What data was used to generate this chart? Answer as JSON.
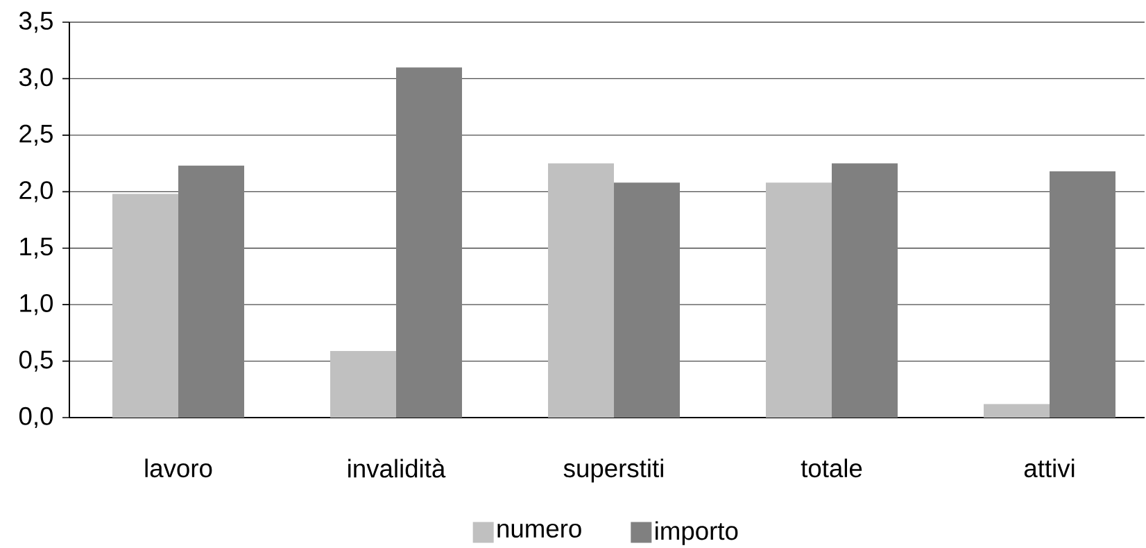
{
  "chart_data": {
    "type": "bar",
    "categories": [
      "lavoro",
      "invalidità",
      "superstiti",
      "totale",
      "attivi"
    ],
    "series": [
      {
        "name": "numero",
        "color": "#c0c0c0",
        "values": [
          1.98,
          0.59,
          2.25,
          2.08,
          0.12
        ]
      },
      {
        "name": "importo",
        "color": "#808080",
        "values": [
          2.23,
          3.1,
          2.08,
          2.25,
          2.18
        ]
      }
    ],
    "ylim": [
      0,
      3.5
    ],
    "yticks": [
      {
        "value": 0,
        "label": "0,0"
      },
      {
        "value": 0.5,
        "label": "0,5"
      },
      {
        "value": 1,
        "label": "1,0"
      },
      {
        "value": 1.5,
        "label": "1,5"
      },
      {
        "value": 2,
        "label": "2,0"
      },
      {
        "value": 2.5,
        "label": "2,5"
      },
      {
        "value": 3,
        "label": "3,0"
      },
      {
        "value": 3.5,
        "label": "3,5"
      }
    ],
    "grid": "y",
    "legend": "bottom"
  }
}
